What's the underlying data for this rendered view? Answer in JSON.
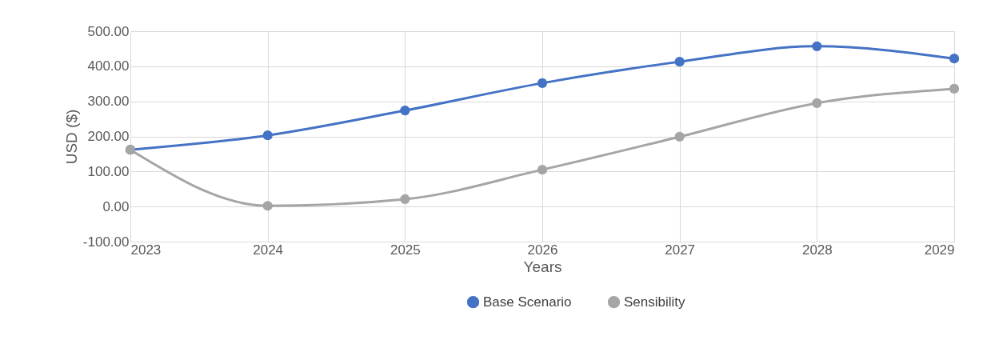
{
  "chart_data": {
    "type": "line",
    "xlabel": "Years",
    "ylabel": "USD ($)",
    "categories": [
      "2023",
      "2024",
      "2025",
      "2026",
      "2027",
      "2028",
      "2029"
    ],
    "series": [
      {
        "name": "Base Scenario",
        "color": "#4472c4",
        "values": [
          162,
          203,
          274,
          352,
          413,
          457,
          422
        ]
      },
      {
        "name": "Sensibility",
        "color": "#a5a5a5",
        "values": [
          162,
          2,
          21,
          105,
          199,
          295,
          336
        ]
      }
    ],
    "ylim": [
      -100,
      500
    ],
    "yticks": [
      {
        "value": -100,
        "label": "-100.00"
      },
      {
        "value": 0,
        "label": "0.00"
      },
      {
        "value": 100,
        "label": "100.00"
      },
      {
        "value": 200,
        "label": "200.00"
      },
      {
        "value": 300,
        "label": "300.00"
      },
      {
        "value": 400,
        "label": "400.00"
      },
      {
        "value": 500,
        "label": "500.00"
      }
    ],
    "grid": true,
    "legend": "bottom",
    "marker": "circle",
    "line_style": "solid"
  }
}
